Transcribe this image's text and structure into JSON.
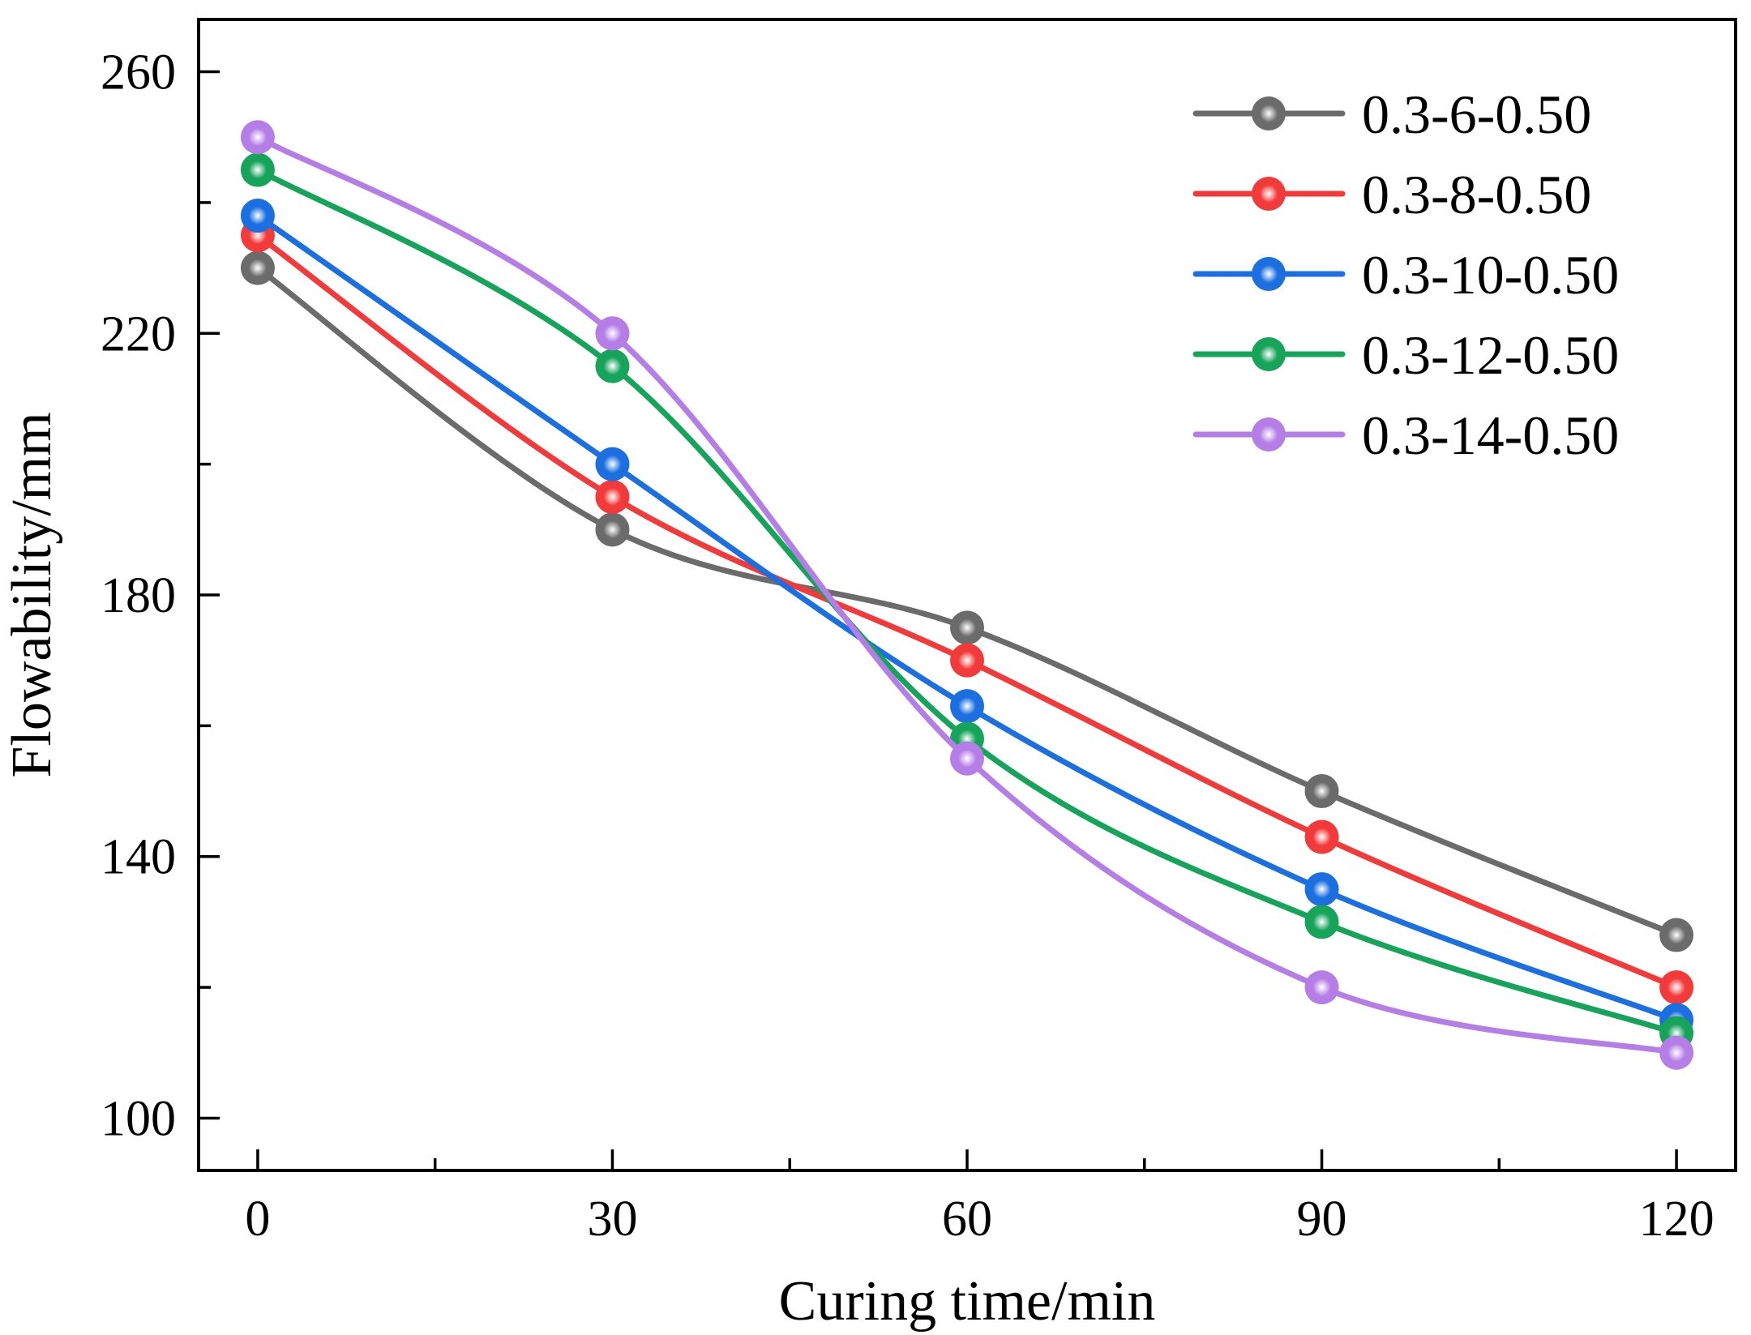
{
  "chart_data": {
    "type": "line",
    "title": "",
    "xlabel": "Curing time/min",
    "ylabel": "Flowability/mm",
    "x": [
      0,
      30,
      60,
      90,
      120
    ],
    "xticks": [
      "0",
      "30",
      "60",
      "90",
      "120"
    ],
    "yticks": [
      "100",
      "140",
      "180",
      "220",
      "260"
    ],
    "xlim": [
      -5,
      125
    ],
    "ylim": [
      92,
      268
    ],
    "grid": false,
    "legend_position": "top-right",
    "series": [
      {
        "name": "0.3-6-0.50",
        "color": "#6b6b6b",
        "values": [
          230,
          190,
          175,
          150,
          128
        ]
      },
      {
        "name": "0.3-8-0.50",
        "color": "#f23a3a",
        "values": [
          235,
          195,
          170,
          143,
          120
        ]
      },
      {
        "name": "0.3-10-0.50",
        "color": "#1b6fe0",
        "values": [
          238,
          200,
          163,
          135,
          115
        ]
      },
      {
        "name": "0.3-12-0.50",
        "color": "#16a35a",
        "values": [
          245,
          215,
          158,
          130,
          113
        ]
      },
      {
        "name": "0.3-14-0.50",
        "color": "#b47ee6",
        "values": [
          250,
          220,
          155,
          120,
          110
        ]
      }
    ]
  }
}
